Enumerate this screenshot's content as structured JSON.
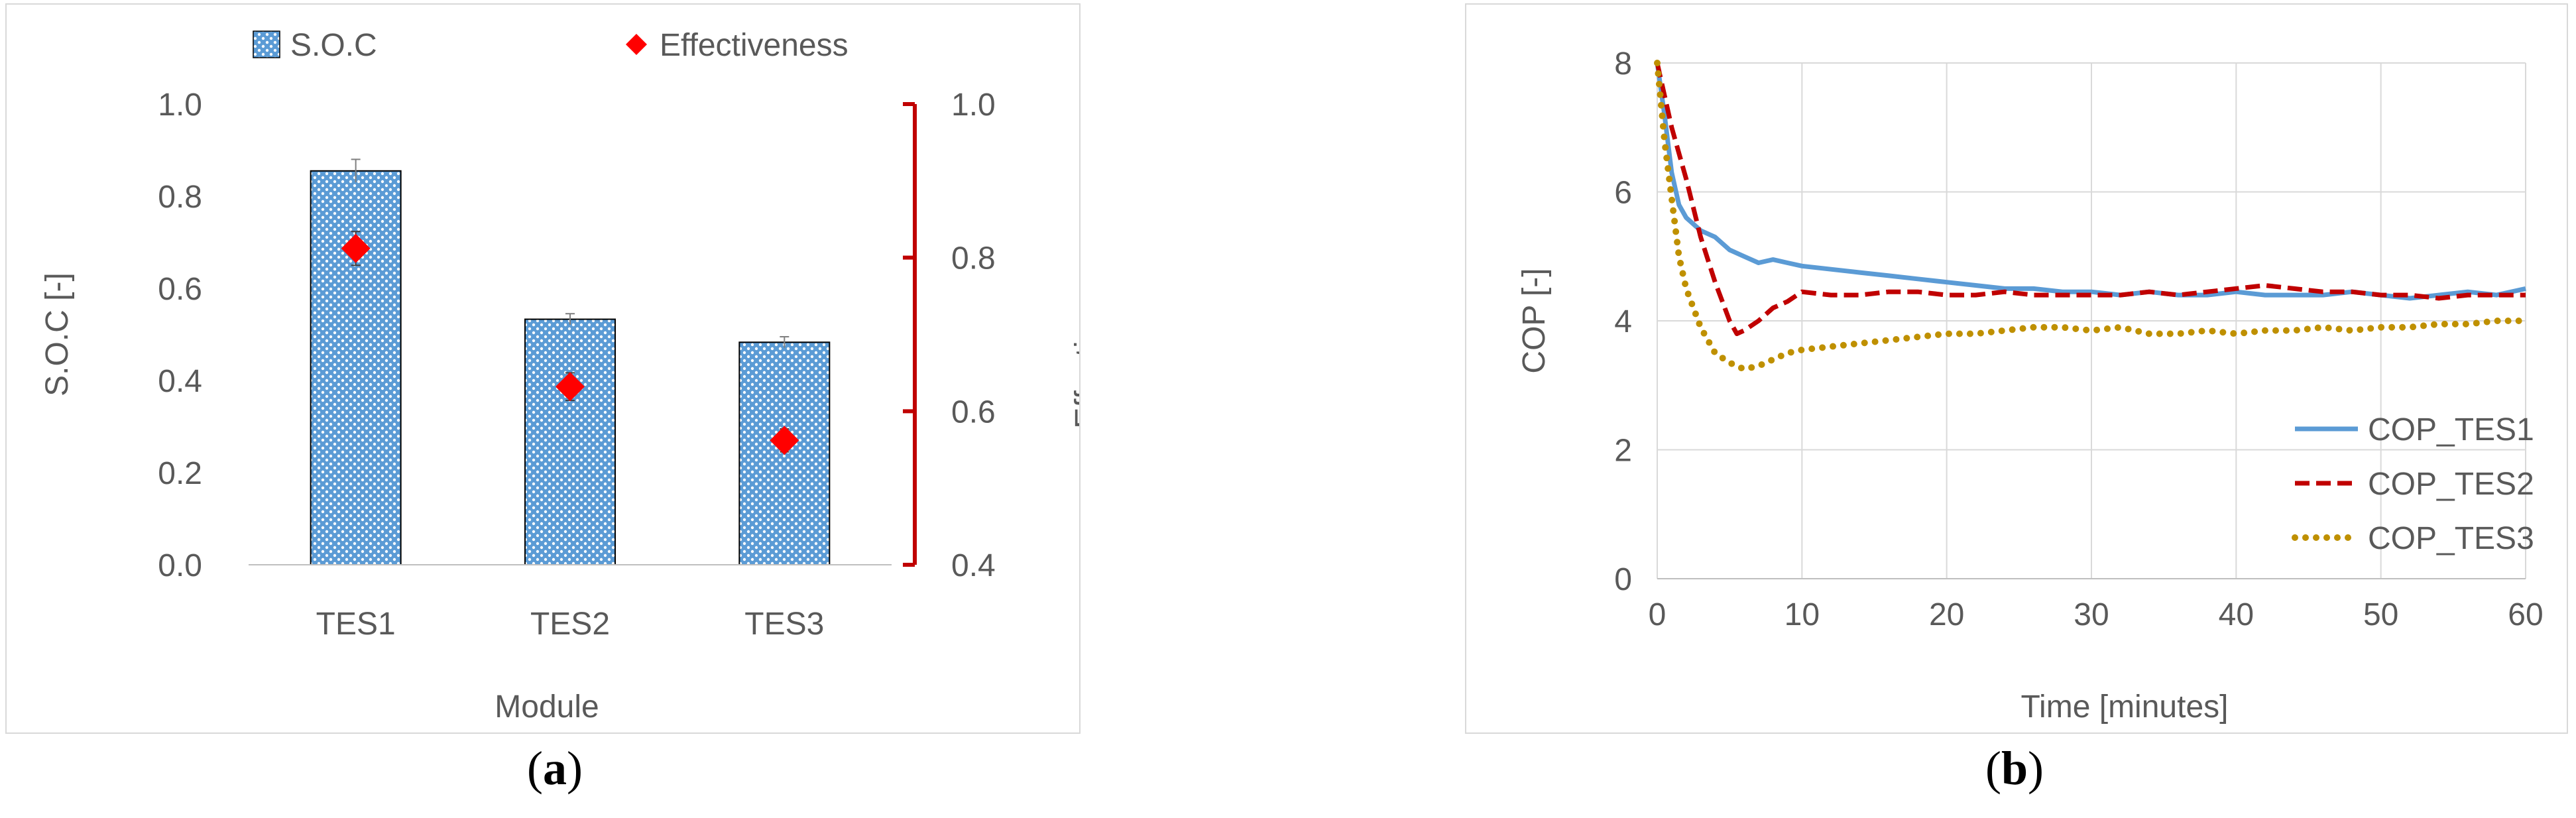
{
  "chart_data": [
    {
      "type": "bar",
      "caption": "a",
      "xlabel": "Module",
      "ylabel": "S.O.C [-]",
      "y2label": "Effectiveness",
      "categories": [
        "TES1",
        "TES2",
        "TES3"
      ],
      "ylim": [
        0,
        1.0
      ],
      "yticks": [
        "0.0",
        "0.2",
        "0.4",
        "0.6",
        "0.8",
        "1.0"
      ],
      "y2lim": [
        0.4,
        1.0
      ],
      "y2ticks": [
        "0.4",
        "0.6",
        "0.8",
        "1.0"
      ],
      "legend_position": "top",
      "series": [
        {
          "name": "S.O.C",
          "kind": "bar",
          "axis": "left",
          "color": "#5b9bd5",
          "values": [
            0.855,
            0.533,
            0.483
          ],
          "errors": [
            0.025,
            0.012,
            0.012
          ]
        },
        {
          "name": "Effectiveness",
          "kind": "marker",
          "axis": "right",
          "color": "#ff0000",
          "values": [
            0.812,
            0.632,
            0.562
          ],
          "errors": [
            0.022,
            0.018,
            0.015
          ]
        }
      ],
      "right_axis_color": "#c00000"
    },
    {
      "type": "line",
      "caption": "b",
      "xlabel": "Time [minutes]",
      "ylabel": "COP [-]",
      "xlim": [
        0,
        60
      ],
      "xticks": [
        "0",
        "10",
        "20",
        "30",
        "40",
        "50",
        "60"
      ],
      "ylim": [
        0,
        8
      ],
      "yticks": [
        "0",
        "2",
        "4",
        "6",
        "8"
      ],
      "grid": true,
      "legend_position": "bottom-right",
      "series": [
        {
          "name": "COP_TES1",
          "color": "#5b9bd5",
          "dash": "solid",
          "x": [
            0,
            0.5,
            1,
            1.5,
            2,
            3,
            4,
            5,
            6,
            7,
            8,
            9,
            10,
            12,
            14,
            16,
            18,
            20,
            22,
            24,
            26,
            28,
            30,
            32,
            34,
            36,
            38,
            40,
            42,
            44,
            46,
            48,
            50,
            52,
            54,
            56,
            58,
            60
          ],
          "y": [
            8.0,
            7.2,
            6.3,
            5.8,
            5.6,
            5.4,
            5.3,
            5.1,
            5.0,
            4.9,
            4.95,
            4.9,
            4.85,
            4.8,
            4.75,
            4.7,
            4.65,
            4.6,
            4.55,
            4.5,
            4.5,
            4.45,
            4.45,
            4.4,
            4.45,
            4.4,
            4.4,
            4.45,
            4.4,
            4.4,
            4.4,
            4.45,
            4.4,
            4.35,
            4.4,
            4.45,
            4.4,
            4.5
          ]
        },
        {
          "name": "COP_TES2",
          "color": "#c00000",
          "dash": "dashed",
          "x": [
            0,
            0.5,
            1,
            2,
            3,
            4,
            5,
            5.5,
            6,
            7,
            8,
            9,
            10,
            12,
            14,
            16,
            18,
            20,
            22,
            24,
            26,
            28,
            30,
            32,
            34,
            36,
            38,
            40,
            42,
            44,
            46,
            48,
            50,
            52,
            54,
            56,
            58,
            60
          ],
          "y": [
            8.0,
            7.5,
            7.0,
            6.2,
            5.3,
            4.6,
            4.0,
            3.8,
            3.85,
            4.0,
            4.2,
            4.3,
            4.45,
            4.4,
            4.4,
            4.45,
            4.45,
            4.4,
            4.4,
            4.45,
            4.4,
            4.4,
            4.4,
            4.4,
            4.45,
            4.4,
            4.45,
            4.5,
            4.55,
            4.5,
            4.45,
            4.45,
            4.4,
            4.4,
            4.35,
            4.4,
            4.4,
            4.4
          ]
        },
        {
          "name": "COP_TES3",
          "color": "#bf9000",
          "dash": "dotted",
          "x": [
            0,
            0.5,
            1,
            1.5,
            2,
            3,
            4,
            5,
            6,
            7,
            8,
            9,
            10,
            12,
            14,
            16,
            18,
            20,
            22,
            24,
            26,
            28,
            30,
            32,
            34,
            36,
            38,
            40,
            42,
            44,
            46,
            48,
            50,
            52,
            54,
            56,
            58,
            60
          ],
          "y": [
            8.0,
            6.8,
            5.9,
            5.0,
            4.5,
            3.9,
            3.5,
            3.35,
            3.25,
            3.3,
            3.4,
            3.5,
            3.55,
            3.6,
            3.65,
            3.7,
            3.75,
            3.8,
            3.8,
            3.85,
            3.9,
            3.9,
            3.85,
            3.9,
            3.8,
            3.8,
            3.85,
            3.8,
            3.85,
            3.85,
            3.9,
            3.85,
            3.9,
            3.9,
            3.95,
            3.95,
            4.0,
            4.0
          ]
        }
      ]
    }
  ]
}
